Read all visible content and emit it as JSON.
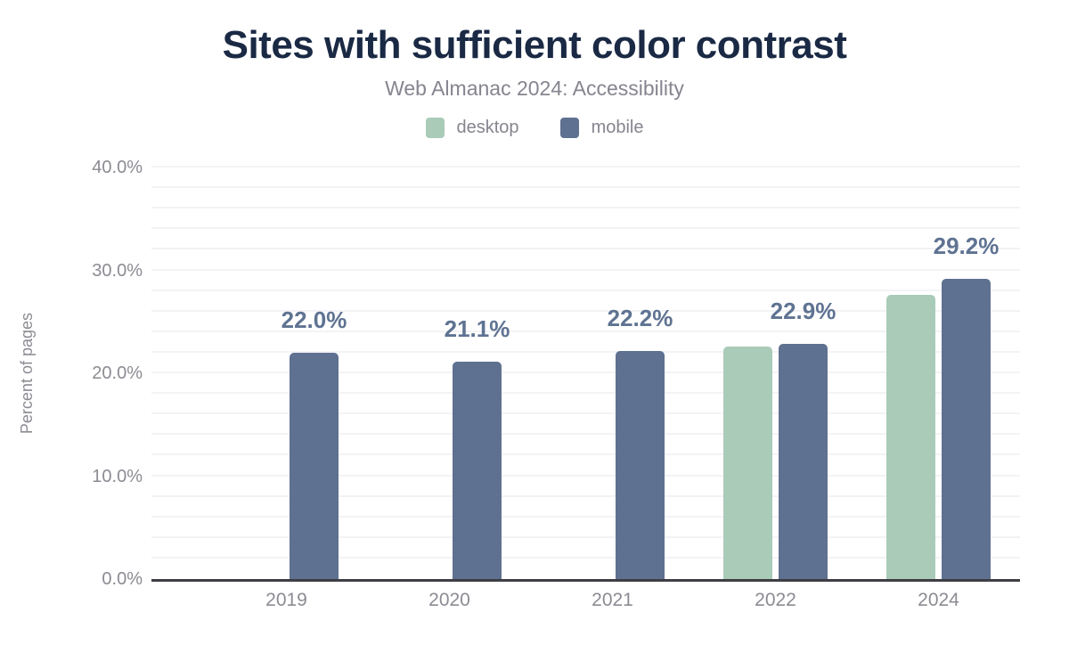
{
  "title": "Sites with sufficient color contrast",
  "subtitle": "Web Almanac 2024: Accessibility",
  "y_axis_title": "Percent of pages",
  "colors": {
    "title_text": "#1a2944",
    "muted_text": "#85858f",
    "axis_text": "#8b8b93",
    "data_label_text": "#5f7392",
    "gridline": "#f3f3f6",
    "axis_line": "#3e3e44",
    "desktop_bar": "#a9cbb8",
    "mobile_bar": "#5f7190"
  },
  "chart_data": {
    "type": "bar",
    "title": "Sites with sufficient color contrast",
    "subtitle": "Web Almanac 2024: Accessibility",
    "categories": [
      "2019",
      "2020",
      "2021",
      "2022",
      "2024"
    ],
    "series": [
      {
        "name": "desktop",
        "color": "#a9cbb8",
        "values": [
          null,
          null,
          null,
          22.6,
          27.6
        ]
      },
      {
        "name": "mobile",
        "color": "#5f7190",
        "values": [
          22.0,
          21.1,
          22.2,
          22.9,
          29.2
        ]
      }
    ],
    "bar_labels": [
      "22.0%",
      "21.1%",
      "22.2%",
      "22.9%",
      "29.2%"
    ],
    "bar_label_series": "mobile",
    "xlabel": "",
    "ylabel": "Percent of pages",
    "ylim": [
      0,
      40
    ],
    "y_major_step": 10,
    "y_minor_step": 2,
    "y_tick_labels": [
      "0.0%",
      "10.0%",
      "20.0%",
      "30.0%",
      "40.0%"
    ],
    "grid": "horizontal-minor",
    "legend_position": "top",
    "legend": [
      {
        "label": "desktop",
        "color": "#a9cbb8"
      },
      {
        "label": "mobile",
        "color": "#5f7190"
      }
    ]
  }
}
